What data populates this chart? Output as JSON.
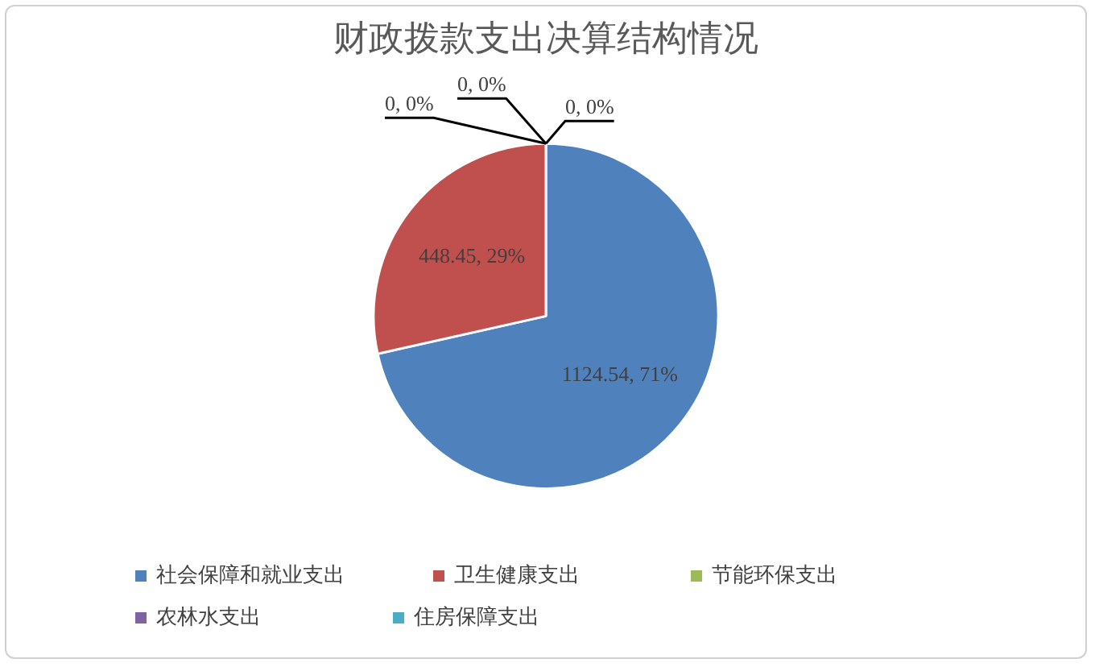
{
  "chart_data": {
    "type": "pie",
    "title": "财政拨款支出决算结构情况",
    "categories": [
      "社会保障和就业支出",
      "卫生健康支出",
      "节能环保支出",
      "农林水支出",
      "住房保障支出"
    ],
    "values": [
      1124.54,
      448.45,
      0,
      0,
      0
    ],
    "colors": [
      "#4f81bd",
      "#c0504d",
      "#9bbb59",
      "#8064a2",
      "#4bacc6"
    ],
    "value_labels": [
      "1124.54, 71%",
      "448.45, 29%",
      "0, 0%",
      "0, 0%",
      "0, 0%"
    ],
    "legend": "bottom"
  }
}
